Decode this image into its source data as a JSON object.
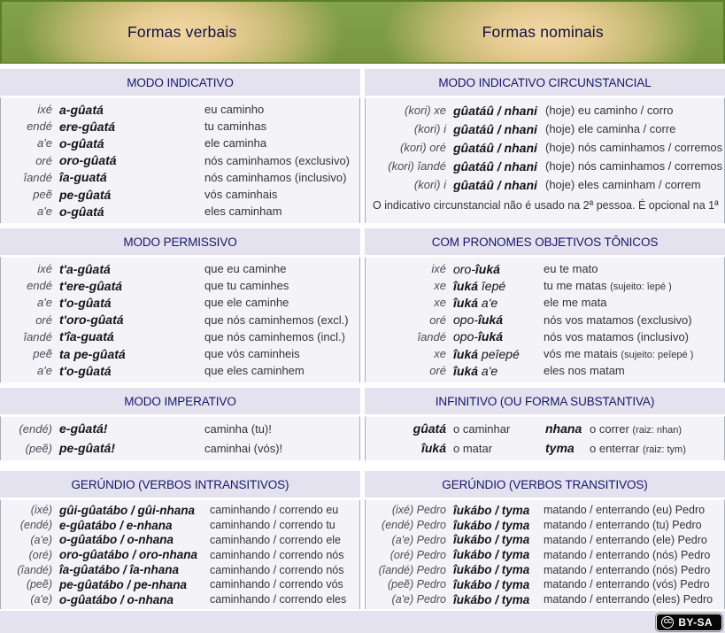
{
  "banner": {
    "left_title": "Formas verbais",
    "right_title": "Formas nominais"
  },
  "colors": {
    "banner_green": "#7e9d43",
    "banner_glow": "#f0d4a2",
    "band_header_bg": "#e4e2ee",
    "band_header_text": "#16166b",
    "cell_bg": "#f4f3f8",
    "divider_gray": "#acacb8",
    "form_text": "#141418",
    "pronoun_text": "#4b4b55",
    "badge_bg": "#000000",
    "badge_text": "#ffffff"
  },
  "license_badge": {
    "cc": "CC",
    "label": "BY-SA"
  },
  "sections": [
    {
      "id": "modo-indicativo",
      "title": "MODO INDICATIVO",
      "rows": [
        {
          "p": "ixé",
          "f": "a-gûatá",
          "g": "eu caminho"
        },
        {
          "p": "endé",
          "f": "ere-gûatá",
          "g": "tu caminhas"
        },
        {
          "p": "a'e",
          "f": "o-gûatá",
          "g": "ele caminha"
        },
        {
          "p": "oré",
          "f": "oro-gûatá",
          "g": "nós caminhamos (exclusivo)"
        },
        {
          "p": "îandé",
          "f": "îa-guatá",
          "g": "nós caminhamos (inclusivo)"
        },
        {
          "p": "peẽ",
          "f": "pe-gûatá",
          "g": "vós caminhais"
        },
        {
          "p": "a'e",
          "f": "o-gûatá",
          "g": "eles caminham"
        }
      ]
    },
    {
      "id": "modo-indicativo-circunstancial",
      "title": "MODO INDICATIVO CIRCUNSTANCIAL",
      "rows": [
        {
          "p": "(kori) xe",
          "f": "gûatáû / nhani",
          "g": "(hoje) eu caminho / corro"
        },
        {
          "p": "(kori) i",
          "f": "gûatáû / nhani",
          "g": "(hoje) ele caminha / corre"
        },
        {
          "p": "(kori) oré",
          "f": "gûatáû / nhani",
          "g": "(hoje) nós caminhamos / corremos"
        },
        {
          "p": "(kori) îandé",
          "f": "gûatáû / nhani",
          "g": "(hoje) nós caminhamos / corremos"
        },
        {
          "p": "(kori) i",
          "f": "gûatáû / nhani",
          "g": "(hoje) eles caminham / correm"
        }
      ],
      "note": "O indicativo circunstancial não é usado na 2ª pessoa. É opcional na 1ª"
    },
    {
      "id": "modo-permissivo",
      "title": "MODO PERMISSIVO",
      "rows": [
        {
          "p": "ixé",
          "f": "t'a-gûatá",
          "g": "que eu caminhe"
        },
        {
          "p": "endé",
          "f": "t'ere-gûatá",
          "g": "que tu caminhes"
        },
        {
          "p": "a'e",
          "f": "t'o-gûatá",
          "g": "que ele caminhe"
        },
        {
          "p": "oré",
          "f": "t'oro-gûatá",
          "g": "que nós caminhemos (excl.)"
        },
        {
          "p": "îandé",
          "f": "t'îa-guatá",
          "g": "que nós caminhemos (incl.)"
        },
        {
          "p": "peẽ",
          "f": "ta pe-gûatá",
          "g": "que vós caminheis"
        },
        {
          "p": "a'e",
          "f": "t'o-gûatá",
          "g": "que eles caminhem"
        }
      ]
    },
    {
      "id": "com-pronomes-objetivos-tonicos",
      "title": "COM PRONOMES OBJETIVOS TÔNICOS",
      "rows": [
        {
          "p": "ixé",
          "fp": [
            {
              "t": "oro-",
              "b": false
            },
            {
              "t": "îuká",
              "b": true
            }
          ],
          "g": "eu te mato"
        },
        {
          "p": "xe",
          "fp": [
            {
              "t": "îuká ",
              "b": true
            },
            {
              "t": "îepé",
              "b": false
            }
          ],
          "g": "tu me matas ",
          "gs": "(sujeito: îepé )"
        },
        {
          "p": "xe",
          "fp": [
            {
              "t": "îuká ",
              "b": true
            },
            {
              "t": "a'e",
              "b": false
            }
          ],
          "g": "ele me mata"
        },
        {
          "p": "oré",
          "fp": [
            {
              "t": "opo-",
              "b": false
            },
            {
              "t": "îuká",
              "b": true
            }
          ],
          "g": "nós vos matamos (exclusivo)"
        },
        {
          "p": "îandé",
          "fp": [
            {
              "t": "opo-",
              "b": false
            },
            {
              "t": "îuká",
              "b": true
            }
          ],
          "g": "nós vos matamos (inclusivo)"
        },
        {
          "p": "xe",
          "fp": [
            {
              "t": "îuká ",
              "b": true
            },
            {
              "t": "peîepé",
              "b": false
            }
          ],
          "g": "vós me matais ",
          "gs": "(sujeito: peîepé )"
        },
        {
          "p": "oré",
          "fp": [
            {
              "t": "îuká ",
              "b": true
            },
            {
              "t": "a'e",
              "b": false
            }
          ],
          "g": "eles nos matam"
        }
      ]
    },
    {
      "id": "modo-imperativo",
      "title": "MODO IMPERATIVO",
      "rows": [
        {
          "p": "(endé)",
          "f": "e-gûatá!",
          "g": "caminha (tu)!"
        },
        {
          "p": "(peẽ)",
          "f": "pe-gûatá!",
          "g": "caminhai (vós)!"
        }
      ]
    },
    {
      "id": "infinitivo",
      "title": "INFINITIVO (OU FORMA SUBSTANTIVA)",
      "rows": [
        {
          "f1": "gûatá",
          "g1": "o caminhar",
          "f2": "nhana",
          "g2": "o correr ",
          "g2s": "(raiz: nhan)"
        },
        {
          "f1": "îuká",
          "g1": "o matar",
          "f2": "tyma",
          "g2": "o enterrar ",
          "g2s": "(raiz: tym)"
        }
      ]
    },
    {
      "id": "gerundio-verbos-intransitivos",
      "title": "GERÚNDIO (VERBOS INTRANSITIVOS)",
      "rows": [
        {
          "p": "(ixé)",
          "f": "gûi-gûatábo / gûi-nhana",
          "g": "caminhando / correndo eu"
        },
        {
          "p": "(endé)",
          "f": "e-gûatábo / e-nhana",
          "g": "caminhando / correndo tu"
        },
        {
          "p": "(a'e)",
          "f": "o-gûatábo / o-nhana",
          "g": "caminhando / correndo ele"
        },
        {
          "p": "(oré)",
          "f": "oro-gûatábo / oro-nhana",
          "g": "caminhando / correndo nós"
        },
        {
          "p": "(îandé)",
          "f": "îa-gûatábo / îa-nhana",
          "g": "caminhando / correndo nós"
        },
        {
          "p": "(peẽ)",
          "f": "pe-gûatábo / pe-nhana",
          "g": "caminhando / correndo vós"
        },
        {
          "p": "(a'e)",
          "f": "o-gûatábo / o-nhana",
          "g": "caminhando / correndo eles"
        }
      ]
    },
    {
      "id": "gerundio-verbos-transitivos",
      "title": "GERÚNDIO (VERBOS TRANSITIVOS)",
      "rows": [
        {
          "p": "(ixé) Pedro",
          "f": "îukábo / tyma",
          "g": "matando / enterrando (eu) Pedro"
        },
        {
          "p": "(endé) Pedro",
          "f": "îukábo / tyma",
          "g": "matando / enterrando (tu) Pedro"
        },
        {
          "p": "(a'e) Pedro",
          "f": "îukábo / tyma",
          "g": "matando / enterrando (ele) Pedro"
        },
        {
          "p": "(oré) Pedro",
          "f": "îukábo / tyma",
          "g": "matando / enterrando (nós) Pedro"
        },
        {
          "p": "(îandé) Pedro",
          "f": "îukábo / tyma",
          "g": "matando / enterrando (nós) Pedro"
        },
        {
          "p": "(peẽ) Pedro",
          "f": "îukábo / tyma",
          "g": "matando / enterrando (vós) Pedro"
        },
        {
          "p": "(a'e) Pedro",
          "f": "îukábo / tyma",
          "g": "matando / enterrando (eles) Pedro"
        }
      ]
    }
  ]
}
